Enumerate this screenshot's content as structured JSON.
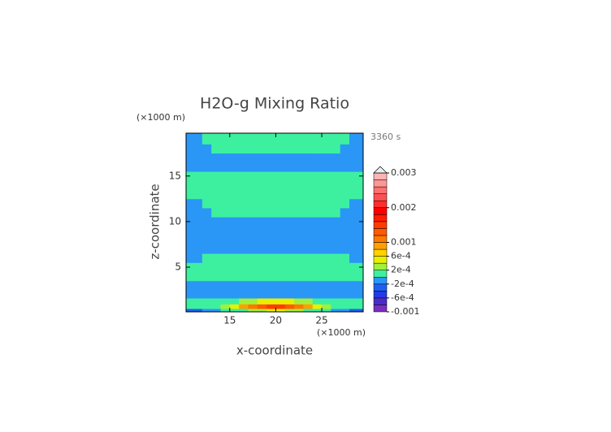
{
  "chart_data": {
    "type": "contour",
    "title": "H2O-g Mixing Ratio",
    "x_label": "x-coordinate",
    "y_label": "z-coordinate",
    "x_units": "(×1000 m)",
    "y_units": "(×1000 m)",
    "time": "3360 s",
    "xlim": [
      10.25,
      29.5
    ],
    "ylim": [
      0.1,
      19.7
    ],
    "xticks": [
      15,
      20,
      25
    ],
    "yticks": [
      5,
      10,
      15
    ],
    "x": [
      10.5,
      11.5,
      12.5,
      13.5,
      14.5,
      15.5,
      16.5,
      17.5,
      18.5,
      19.5,
      20.5,
      21.5,
      22.5,
      23.5,
      24.5,
      25.5,
      26.5,
      27.5,
      28.5,
      29.5
    ],
    "z": [
      0.2,
      0.7,
      1.2,
      2,
      3,
      4,
      5,
      6,
      7,
      8,
      9,
      10,
      11,
      12,
      13,
      14,
      15,
      16,
      17,
      18,
      19
    ],
    "values": [
      [
        -0.0003,
        -0.0003,
        -0.0001,
        -0.0001,
        0.0001,
        0.0001,
        0.0001,
        0.0003,
        0.0003,
        0.0005,
        0.0005,
        0.0003,
        0.0003,
        0.0001,
        0.0001,
        0.0001,
        -0.0001,
        -0.0001,
        -0.0003,
        -0.0003
      ],
      [
        0.0001,
        0.0001,
        0.0001,
        0.0001,
        0.0003,
        0.0005,
        0.0009,
        0.0011,
        0.0013,
        0.0015,
        0.0015,
        0.0013,
        0.0011,
        0.0009,
        0.0005,
        0.0003,
        0.0001,
        0.0001,
        0.0001,
        0.0001
      ],
      [
        0.0001,
        0.0001,
        0.0001,
        0.0001,
        0.0001,
        0.0001,
        0.0003,
        0.0003,
        0.0005,
        0.0005,
        0.0005,
        0.0005,
        0.0003,
        0.0003,
        0.0001,
        0.0001,
        0.0001,
        0.0001,
        0.0001,
        0.0001
      ],
      [
        -0.0001,
        -0.0001,
        -0.0001,
        -0.0001,
        -0.0001,
        -0.0001,
        -0.0001,
        -0.0001,
        -0.0001,
        -0.0001,
        -0.0001,
        -0.0001,
        -0.0001,
        -0.0001,
        -0.0001,
        -0.0001,
        -0.0001,
        -0.0001,
        -0.0001,
        -0.0001
      ],
      [
        -0.0001,
        -0.0001,
        -0.0001,
        -0.0001,
        -0.0001,
        -0.0001,
        -0.0001,
        -0.0001,
        -0.0001,
        -0.0001,
        -0.0001,
        -0.0001,
        -0.0001,
        -0.0001,
        -0.0001,
        -0.0001,
        -0.0001,
        -0.0001,
        -0.0001,
        -0.0001
      ],
      [
        0.0001,
        0.0001,
        0.0001,
        0.0001,
        0.0001,
        0.0001,
        0.0001,
        0.0001,
        0.0001,
        0.0001,
        0.0001,
        0.0001,
        0.0001,
        0.0001,
        0.0001,
        0.0001,
        0.0001,
        0.0001,
        0.0001,
        0.0001
      ],
      [
        0.0001,
        0.0001,
        0.0001,
        0.0001,
        0.0001,
        0.0001,
        0.0001,
        0.0001,
        0.0001,
        0.0001,
        0.0001,
        0.0001,
        0.0001,
        0.0001,
        0.0001,
        0.0001,
        0.0001,
        0.0001,
        0.0001,
        0.0001
      ],
      [
        -0.0001,
        -0.0001,
        0.0001,
        0.0001,
        0.0001,
        0.0001,
        0.0001,
        0.0001,
        0.0001,
        0.0001,
        0.0001,
        0.0001,
        0.0001,
        0.0001,
        0.0001,
        0.0001,
        0.0001,
        0.0001,
        -0.0001,
        -0.0001
      ],
      [
        -0.0001,
        -0.0001,
        -0.0001,
        -0.0001,
        -0.0001,
        -0.0001,
        -0.0001,
        -0.0001,
        -0.0001,
        -0.0001,
        -0.0001,
        -0.0001,
        -0.0001,
        -0.0001,
        -0.0001,
        -0.0001,
        -0.0001,
        -0.0001,
        -0.0001,
        -0.0001
      ],
      [
        -0.0001,
        -0.0001,
        -0.0001,
        -0.0001,
        -0.0001,
        -0.0001,
        -0.0001,
        -0.0001,
        -0.0001,
        -0.0001,
        -0.0001,
        -0.0001,
        -0.0001,
        -0.0001,
        -0.0001,
        -0.0001,
        -0.0001,
        -0.0001,
        -0.0001,
        -0.0001
      ],
      [
        -0.0001,
        -0.0001,
        -0.0001,
        -0.0001,
        -0.0001,
        -0.0001,
        -0.0001,
        -0.0001,
        -0.0001,
        -0.0001,
        -0.0001,
        -0.0001,
        -0.0001,
        -0.0001,
        -0.0001,
        -0.0001,
        -0.0001,
        -0.0001,
        -0.0001,
        -0.0001
      ],
      [
        -0.0001,
        -0.0001,
        -0.0001,
        -0.0001,
        -0.0001,
        -0.0001,
        -0.0001,
        -0.0001,
        -0.0001,
        -0.0001,
        -0.0001,
        -0.0001,
        -0.0001,
        -0.0001,
        -0.0001,
        -0.0001,
        -0.0001,
        -0.0001,
        -0.0001,
        -0.0001
      ],
      [
        -0.0001,
        -0.0001,
        -0.0001,
        0.0001,
        0.0001,
        0.0001,
        0.0001,
        0.0001,
        0.0001,
        0.0001,
        0.0001,
        0.0001,
        0.0001,
        0.0001,
        0.0001,
        0.0001,
        0.0001,
        -0.0001,
        -0.0001,
        -0.0001
      ],
      [
        -0.0001,
        -0.0001,
        0.0001,
        0.0001,
        0.0001,
        0.0001,
        0.0001,
        0.0001,
        0.0001,
        0.0001,
        0.0001,
        0.0001,
        0.0001,
        0.0001,
        0.0001,
        0.0001,
        0.0001,
        0.0001,
        -0.0001,
        -0.0001
      ],
      [
        0.0001,
        0.0001,
        0.0001,
        0.0001,
        0.0001,
        0.0001,
        0.0001,
        0.0001,
        0.0001,
        0.0001,
        0.0001,
        0.0001,
        0.0001,
        0.0001,
        0.0001,
        0.0001,
        0.0001,
        0.0001,
        0.0001,
        0.0001
      ],
      [
        0.0001,
        0.0001,
        0.0001,
        0.0001,
        0.0001,
        0.0001,
        0.0001,
        0.0001,
        0.0001,
        0.0001,
        0.0001,
        0.0001,
        0.0001,
        0.0001,
        0.0001,
        0.0001,
        0.0001,
        0.0001,
        0.0001,
        0.0001
      ],
      [
        0.0001,
        0.0001,
        0.0001,
        0.0001,
        0.0001,
        0.0001,
        0.0001,
        0.0001,
        0.0001,
        0.0001,
        0.0001,
        0.0001,
        0.0001,
        0.0001,
        0.0001,
        0.0001,
        0.0001,
        0.0001,
        0.0001,
        0.0001
      ],
      [
        -0.0001,
        -0.0001,
        -0.0001,
        -0.0001,
        -0.0001,
        -0.0001,
        -0.0001,
        -0.0001,
        -0.0001,
        -0.0001,
        -0.0001,
        -0.0001,
        -0.0001,
        -0.0001,
        -0.0001,
        -0.0001,
        -0.0001,
        -0.0001,
        -0.0001,
        -0.0001
      ],
      [
        -0.0001,
        -0.0001,
        -0.0001,
        -0.0001,
        -0.0001,
        -0.0001,
        -0.0001,
        -0.0001,
        -0.0001,
        -0.0001,
        -0.0001,
        -0.0001,
        -0.0001,
        -0.0001,
        -0.0001,
        -0.0001,
        -0.0001,
        -0.0001,
        -0.0001,
        -0.0001
      ],
      [
        -0.0001,
        -0.0001,
        -0.0001,
        0.0001,
        0.0001,
        0.0001,
        0.0001,
        0.0001,
        0.0001,
        0.0001,
        0.0001,
        0.0001,
        0.0001,
        0.0001,
        0.0001,
        0.0001,
        0.0001,
        -0.0001,
        -0.0001,
        -0.0001
      ],
      [
        -0.0001,
        -0.0001,
        0.0001,
        0.0001,
        0.0001,
        0.0001,
        0.0001,
        0.0001,
        0.0001,
        0.0001,
        0.0001,
        0.0001,
        0.0001,
        0.0001,
        0.0001,
        0.0001,
        0.0001,
        0.0001,
        -0.0001,
        -0.0001
      ]
    ],
    "levels": [
      -0.001,
      -0.0008,
      -0.0006,
      -0.0004,
      -0.0002,
      0,
      0.0002,
      0.0004,
      0.0006,
      0.0008,
      0.001,
      0.0012,
      0.0014,
      0.0016,
      0.0018,
      0.002,
      0.0022,
      0.0024,
      0.0026,
      0.0028,
      0.003
    ],
    "colors": [
      "#7a2fc0",
      "#4a2cc8",
      "#2438e8",
      "#1e60f0",
      "#2a96f6",
      "#3cf0a0",
      "#a0f03c",
      "#e8f000",
      "#ffd200",
      "#ffa000",
      "#ff7800",
      "#ff5a00",
      "#ff3c00",
      "#ff1e00",
      "#ff0000",
      "#ff2e2e",
      "#ff5050",
      "#ff7070",
      "#ff9696",
      "#ffb4b4"
    ],
    "colorbar_ticks": [
      0.003,
      0.002,
      0.001,
      {
        "value": 0.0006,
        "label": "6e-4"
      },
      {
        "value": 0.0002,
        "label": "2e-4"
      },
      {
        "value": -0.0002,
        "label": "-2e-4"
      },
      {
        "value": -0.0006,
        "label": "-6e-4"
      },
      -0.001
    ]
  }
}
